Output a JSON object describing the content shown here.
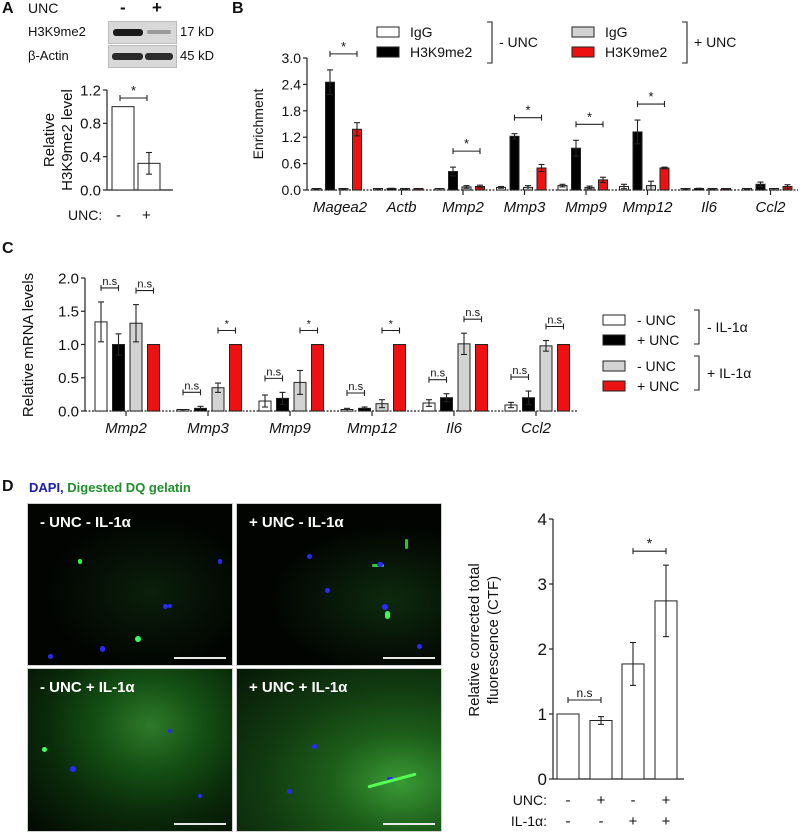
{
  "panels": {
    "A": {
      "letter": "A",
      "blot": {
        "condition_label": "UNC",
        "lanes": [
          "-",
          "+"
        ],
        "rows": [
          {
            "label": "H3K9me2",
            "size": "17 kD"
          },
          {
            "label": "β-Actin",
            "size": "45 kD"
          }
        ]
      },
      "x_row_label": "UNC:",
      "x_row_values": [
        "-",
        "+"
      ]
    },
    "B": {
      "letter": "B"
    },
    "C": {
      "letter": "C"
    },
    "D": {
      "letter": "D",
      "title_dapi": "DAPI,",
      "title_gelatin": "Digested DQ gelatin",
      "images": [
        {
          "label": "- UNC - IL-1α"
        },
        {
          "label": "+ UNC - IL-1α"
        },
        {
          "label": "- UNC + IL-1α"
        },
        {
          "label": "+ UNC + IL-1α"
        }
      ],
      "row_labels": [
        "UNC:",
        "IL-1α:"
      ],
      "unc_values": [
        "-",
        "+",
        "-",
        "+"
      ],
      "il1a_values": [
        "-",
        "-",
        "+",
        "+"
      ]
    }
  },
  "colors": {
    "white_bar": "#ffffff",
    "black_bar": "#000000",
    "gray_bar": "#d3d3d3",
    "red_bar": "#ee1111",
    "dapi_blue": "#1a1ab0",
    "gelatin_green": "#1f8f2a"
  },
  "chart_data": [
    {
      "id": "A",
      "type": "bar",
      "title": "",
      "xlabel": "UNC:",
      "ylabel": "Relative H3K9me2 level",
      "categories": [
        "-",
        "+"
      ],
      "values": [
        1.0,
        0.32
      ],
      "errors": [
        0,
        0.13
      ],
      "ylim": [
        0,
        1.2
      ],
      "yticks": [
        "0.0",
        "0.4",
        "0.8",
        "1.2"
      ],
      "significance": [
        {
          "from": 0,
          "to": 1,
          "label": "*"
        }
      ],
      "grid": false
    },
    {
      "id": "B",
      "type": "bar",
      "title": "",
      "ylabel": "Enrichment",
      "xlabel": "",
      "categories": [
        "Magea2",
        "Actb",
        "Mmp2",
        "Mmp3",
        "Mmp9",
        "Mmp12",
        "Il6",
        "Ccl2"
      ],
      "ylim": [
        0,
        3.0
      ],
      "yticks": [
        "0.0",
        "0.6",
        "1.2",
        "1.8",
        "2.4",
        "3.0"
      ],
      "legend": {
        "position": "top",
        "groups": [
          {
            "label": "- UNC",
            "entries": [
              "IgG",
              "H3K9me2"
            ]
          },
          {
            "label": "+ UNC",
            "entries": [
              "IgG",
              "H3K9me2"
            ]
          }
        ]
      },
      "series": [
        {
          "name": "IgG - UNC",
          "color": "#ffffff",
          "values": [
            0.01,
            0.02,
            0.02,
            0.06,
            0.1,
            0.08,
            0.01,
            0.01
          ],
          "errors": [
            0.005,
            0.005,
            0.01,
            0.02,
            0.03,
            0.05,
            0.005,
            0.005
          ]
        },
        {
          "name": "H3K9me2 - UNC",
          "color": "#000000",
          "values": [
            2.45,
            0.03,
            0.42,
            1.22,
            0.95,
            1.32,
            0.03,
            0.13
          ],
          "errors": [
            0.28,
            0.01,
            0.1,
            0.06,
            0.18,
            0.27,
            0.01,
            0.05
          ]
        },
        {
          "name": "IgG + UNC",
          "color": "#d3d3d3",
          "values": [
            0.01,
            0.01,
            0.07,
            0.06,
            0.06,
            0.1,
            0.01,
            0.02
          ],
          "errors": [
            0.005,
            0.005,
            0.03,
            0.04,
            0.03,
            0.1,
            0.005,
            0.01
          ]
        },
        {
          "name": "H3K9me2 + UNC",
          "color": "#ee1111",
          "values": [
            1.38,
            0.02,
            0.08,
            0.5,
            0.23,
            0.5,
            0.01,
            0.08
          ],
          "errors": [
            0.15,
            0.01,
            0.03,
            0.08,
            0.06,
            0.02,
            0.005,
            0.04
          ]
        }
      ],
      "significance": [
        {
          "category": "Magea2",
          "label": "*"
        },
        {
          "category": "Mmp2",
          "label": "*"
        },
        {
          "category": "Mmp3",
          "label": "*"
        },
        {
          "category": "Mmp9",
          "label": "*"
        },
        {
          "category": "Mmp12",
          "label": "*"
        }
      ],
      "grid": false
    },
    {
      "id": "C",
      "type": "bar",
      "title": "",
      "ylabel": "Relative mRNA levels",
      "xlabel": "",
      "categories": [
        "Mmp2",
        "Mmp3",
        "Mmp9",
        "Mmp12",
        "Il6",
        "Ccl2"
      ],
      "ylim": [
        0,
        2.0
      ],
      "yticks": [
        "0.0",
        "0.5",
        "1.0",
        "1.5",
        "2.0"
      ],
      "legend": {
        "position": "right",
        "groups": [
          {
            "label": "- IL-1α",
            "entries": [
              "- UNC",
              "+ UNC"
            ]
          },
          {
            "label": "+ IL-1α",
            "entries": [
              "- UNC",
              "+ UNC"
            ]
          }
        ]
      },
      "series": [
        {
          "name": "- UNC - IL-1α",
          "color": "#ffffff",
          "values": [
            1.34,
            0.01,
            0.15,
            0.02,
            0.12,
            0.09
          ],
          "errors": [
            0.3,
            0.01,
            0.09,
            0.02,
            0.05,
            0.04
          ]
        },
        {
          "name": "+ UNC - IL-1α",
          "color": "#000000",
          "values": [
            1.0,
            0.04,
            0.19,
            0.04,
            0.2,
            0.2
          ],
          "errors": [
            0.16,
            0.03,
            0.09,
            0.02,
            0.06,
            0.1
          ]
        },
        {
          "name": "- UNC + IL-1α",
          "color": "#d3d3d3",
          "values": [
            1.32,
            0.35,
            0.43,
            0.11,
            1.01,
            0.98
          ],
          "errors": [
            0.28,
            0.07,
            0.18,
            0.06,
            0.16,
            0.08
          ]
        },
        {
          "name": "+ UNC + IL-1α",
          "color": "#ee1111",
          "values": [
            1.0,
            1.0,
            1.0,
            1.0,
            1.0,
            1.0
          ],
          "errors": [
            0,
            0,
            0,
            0,
            0,
            0
          ]
        }
      ],
      "significance": [
        {
          "category": "Mmp2",
          "pair": "-IL1a",
          "label": "n.s"
        },
        {
          "category": "Mmp2",
          "pair": "+IL1a",
          "label": "n.s"
        },
        {
          "category": "Mmp3",
          "pair": "-IL1a",
          "label": "n.s"
        },
        {
          "category": "Mmp3",
          "pair": "+IL1a",
          "label": "*"
        },
        {
          "category": "Mmp9",
          "pair": "-IL1a",
          "label": "n.s"
        },
        {
          "category": "Mmp9",
          "pair": "+IL1a",
          "label": "*"
        },
        {
          "category": "Mmp12",
          "pair": "-IL1a",
          "label": "n.s"
        },
        {
          "category": "Mmp12",
          "pair": "+IL1a",
          "label": "*"
        },
        {
          "category": "Il6",
          "pair": "-IL1a",
          "label": "n.s"
        },
        {
          "category": "Il6",
          "pair": "+IL1a",
          "label": "n.s"
        },
        {
          "category": "Ccl2",
          "pair": "-IL1a",
          "label": "n.s"
        },
        {
          "category": "Ccl2",
          "pair": "+IL1a",
          "label": "n.s"
        }
      ],
      "grid": false
    },
    {
      "id": "D",
      "type": "bar",
      "title": "",
      "ylabel": "Relative corrected total fluorescence (CTF)",
      "xlabel": "",
      "categories": [
        "-UNC -IL-1α",
        "+UNC -IL-1α",
        "-UNC +IL-1α",
        "+UNC +IL-1α"
      ],
      "values": [
        1.0,
        0.9,
        1.77,
        2.74
      ],
      "errors": [
        0,
        0.06,
        0.33,
        0.55
      ],
      "ylim": [
        0,
        4
      ],
      "yticks": [
        "0",
        "1",
        "2",
        "3",
        "4"
      ],
      "significance": [
        {
          "from": 0,
          "to": 1,
          "label": "n.s"
        },
        {
          "from": 2,
          "to": 3,
          "label": "*"
        }
      ],
      "grid": false
    }
  ]
}
